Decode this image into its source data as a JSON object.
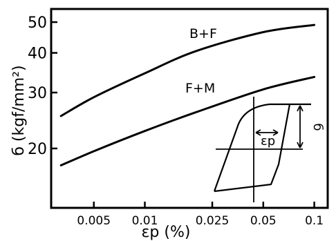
{
  "chart_data": {
    "type": "line",
    "xlabel": "εp (%)",
    "ylabel": "б (kgf/mm²)",
    "x_scale": "log",
    "y_scale": "log",
    "xlim": [
      0.0028,
      0.12
    ],
    "ylim": [
      13,
      55
    ],
    "x_ticks": [
      {
        "value": 0.005,
        "label": "0.005"
      },
      {
        "value": 0.01,
        "label": "0.01"
      },
      {
        "value": 0.025,
        "label": "0.025"
      },
      {
        "value": 0.05,
        "label": "0.05"
      },
      {
        "value": 0.1,
        "label": "0.1"
      }
    ],
    "y_ticks": [
      {
        "value": 20,
        "label": "20"
      },
      {
        "value": 30,
        "label": "30"
      },
      {
        "value": 40,
        "label": "40"
      },
      {
        "value": 50,
        "label": "50"
      }
    ],
    "grid": false,
    "series": [
      {
        "name": "B+F",
        "x": [
          0.0032,
          0.005,
          0.01,
          0.02,
          0.05,
          0.1
        ],
        "y": [
          25.3,
          29.0,
          34.5,
          40.5,
          46.5,
          49.0
        ]
      },
      {
        "name": "F+M",
        "x": [
          0.0032,
          0.005,
          0.01,
          0.02,
          0.05,
          0.1
        ],
        "y": [
          17.7,
          19.6,
          22.7,
          26.0,
          30.7,
          33.6
        ]
      }
    ],
    "annotations": {
      "inset_symbols": {
        "stress": "б",
        "strain": "εp"
      }
    }
  }
}
